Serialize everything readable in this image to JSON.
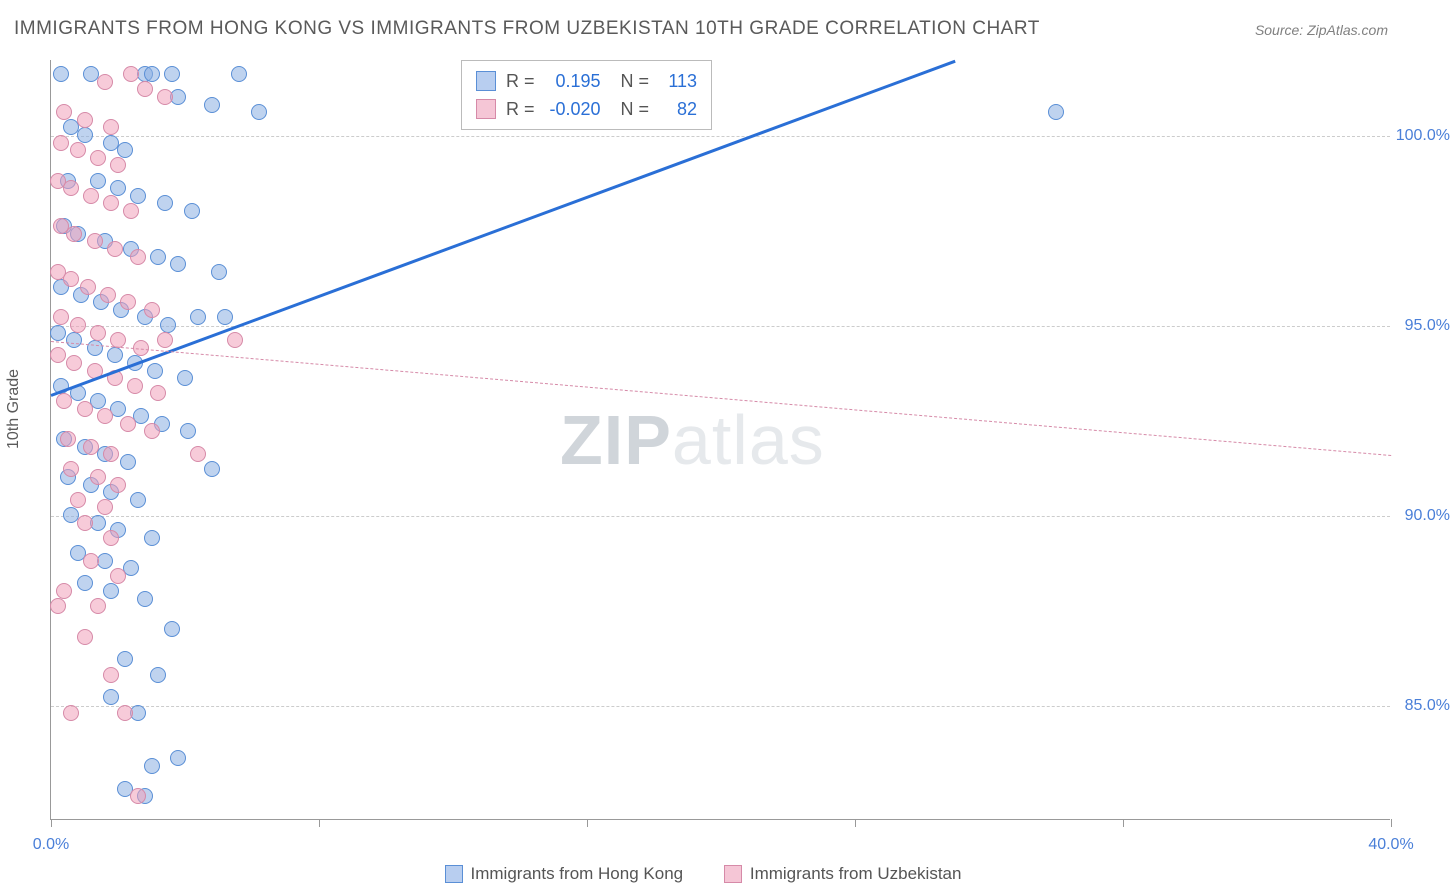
{
  "title": "IMMIGRANTS FROM HONG KONG VS IMMIGRANTS FROM UZBEKISTAN 10TH GRADE CORRELATION CHART",
  "source": "Source: ZipAtlas.com",
  "ylabel": "10th Grade",
  "watermark_zip": "ZIP",
  "watermark_atlas": "atlas",
  "chart": {
    "type": "scatter",
    "xlim": [
      0,
      40
    ],
    "ylim": [
      82,
      102
    ],
    "xtick_labels": [
      "0.0%",
      "40.0%"
    ],
    "xtick_positions": [
      0,
      40
    ],
    "xtick_minor": [
      0,
      8,
      16,
      24,
      32,
      40
    ],
    "ytick_labels": [
      "85.0%",
      "90.0%",
      "95.0%",
      "100.0%"
    ],
    "ytick_positions": [
      85,
      90,
      95,
      100
    ],
    "background_color": "#ffffff",
    "grid_color": "#cccccc",
    "axis_color": "#999999",
    "label_color": "#4a7fd8",
    "series": [
      {
        "name": "Immigrants from Hong Kong",
        "marker_fill": "rgba(139,174,225,0.55)",
        "marker_stroke": "#5a8fd6",
        "swatch_fill": "#b8cef0",
        "swatch_stroke": "#5a8fd6",
        "line_color": "#2a6fd6",
        "line_dash": "solid",
        "line_width": 3,
        "R": "0.195",
        "N": "113",
        "trend": {
          "x1": 0,
          "y1": 93.2,
          "x2": 27,
          "y2": 102
        },
        "points": [
          [
            0.3,
            101.6
          ],
          [
            1.2,
            101.6
          ],
          [
            2.8,
            101.6
          ],
          [
            3.0,
            101.6
          ],
          [
            3.6,
            101.6
          ],
          [
            5.6,
            101.6
          ],
          [
            3.8,
            101.0
          ],
          [
            4.8,
            100.8
          ],
          [
            6.2,
            100.6
          ],
          [
            30.0,
            100.6
          ],
          [
            0.6,
            100.2
          ],
          [
            1.0,
            100.0
          ],
          [
            1.8,
            99.8
          ],
          [
            2.2,
            99.6
          ],
          [
            0.5,
            98.8
          ],
          [
            1.4,
            98.8
          ],
          [
            2.0,
            98.6
          ],
          [
            2.6,
            98.4
          ],
          [
            3.4,
            98.2
          ],
          [
            4.2,
            98.0
          ],
          [
            0.4,
            97.6
          ],
          [
            0.8,
            97.4
          ],
          [
            1.6,
            97.2
          ],
          [
            2.4,
            97.0
          ],
          [
            3.2,
            96.8
          ],
          [
            3.8,
            96.6
          ],
          [
            5.0,
            96.4
          ],
          [
            0.3,
            96.0
          ],
          [
            0.9,
            95.8
          ],
          [
            1.5,
            95.6
          ],
          [
            2.1,
            95.4
          ],
          [
            2.8,
            95.2
          ],
          [
            3.5,
            95.0
          ],
          [
            4.4,
            95.2
          ],
          [
            5.2,
            95.2
          ],
          [
            0.2,
            94.8
          ],
          [
            0.7,
            94.6
          ],
          [
            1.3,
            94.4
          ],
          [
            1.9,
            94.2
          ],
          [
            2.5,
            94.0
          ],
          [
            3.1,
            93.8
          ],
          [
            4.0,
            93.6
          ],
          [
            0.3,
            93.4
          ],
          [
            0.8,
            93.2
          ],
          [
            1.4,
            93.0
          ],
          [
            2.0,
            92.8
          ],
          [
            2.7,
            92.6
          ],
          [
            3.3,
            92.4
          ],
          [
            4.1,
            92.2
          ],
          [
            0.4,
            92.0
          ],
          [
            1.0,
            91.8
          ],
          [
            1.6,
            91.6
          ],
          [
            2.3,
            91.4
          ],
          [
            4.8,
            91.2
          ],
          [
            0.5,
            91.0
          ],
          [
            1.2,
            90.8
          ],
          [
            1.8,
            90.6
          ],
          [
            2.6,
            90.4
          ],
          [
            0.6,
            90.0
          ],
          [
            1.4,
            89.8
          ],
          [
            2.0,
            89.6
          ],
          [
            3.0,
            89.4
          ],
          [
            0.8,
            89.0
          ],
          [
            1.6,
            88.8
          ],
          [
            2.4,
            88.6
          ],
          [
            1.0,
            88.2
          ],
          [
            1.8,
            88.0
          ],
          [
            2.8,
            87.8
          ],
          [
            3.6,
            87.0
          ],
          [
            2.2,
            86.2
          ],
          [
            3.2,
            85.8
          ],
          [
            1.8,
            85.2
          ],
          [
            2.6,
            84.8
          ],
          [
            3.0,
            83.4
          ],
          [
            3.8,
            83.6
          ],
          [
            2.2,
            82.8
          ],
          [
            2.8,
            82.6
          ]
        ]
      },
      {
        "name": "Immigrants from Uzbekistan",
        "marker_fill": "rgba(240,160,185,0.55)",
        "marker_stroke": "#d68aa8",
        "swatch_fill": "#f5c6d6",
        "swatch_stroke": "#d68aa8",
        "line_color": "#d68aa8",
        "line_dash": "dashed",
        "line_width": 1.5,
        "R": "-0.020",
        "N": "82",
        "trend": {
          "x1": 0,
          "y1": 94.6,
          "x2": 40,
          "y2": 91.6
        },
        "points": [
          [
            2.4,
            101.6
          ],
          [
            1.6,
            101.4
          ],
          [
            2.8,
            101.2
          ],
          [
            3.4,
            101.0
          ],
          [
            0.4,
            100.6
          ],
          [
            1.0,
            100.4
          ],
          [
            1.8,
            100.2
          ],
          [
            0.3,
            99.8
          ],
          [
            0.8,
            99.6
          ],
          [
            1.4,
            99.4
          ],
          [
            2.0,
            99.2
          ],
          [
            0.2,
            98.8
          ],
          [
            0.6,
            98.6
          ],
          [
            1.2,
            98.4
          ],
          [
            1.8,
            98.2
          ],
          [
            2.4,
            98.0
          ],
          [
            0.3,
            97.6
          ],
          [
            0.7,
            97.4
          ],
          [
            1.3,
            97.2
          ],
          [
            1.9,
            97.0
          ],
          [
            2.6,
            96.8
          ],
          [
            0.2,
            96.4
          ],
          [
            0.6,
            96.2
          ],
          [
            1.1,
            96.0
          ],
          [
            1.7,
            95.8
          ],
          [
            2.3,
            95.6
          ],
          [
            3.0,
            95.4
          ],
          [
            0.3,
            95.2
          ],
          [
            0.8,
            95.0
          ],
          [
            1.4,
            94.8
          ],
          [
            2.0,
            94.6
          ],
          [
            2.7,
            94.4
          ],
          [
            3.4,
            94.6
          ],
          [
            5.5,
            94.6
          ],
          [
            0.2,
            94.2
          ],
          [
            0.7,
            94.0
          ],
          [
            1.3,
            93.8
          ],
          [
            1.9,
            93.6
          ],
          [
            2.5,
            93.4
          ],
          [
            3.2,
            93.2
          ],
          [
            0.4,
            93.0
          ],
          [
            1.0,
            92.8
          ],
          [
            1.6,
            92.6
          ],
          [
            2.3,
            92.4
          ],
          [
            3.0,
            92.2
          ],
          [
            0.5,
            92.0
          ],
          [
            1.2,
            91.8
          ],
          [
            1.8,
            91.6
          ],
          [
            4.4,
            91.6
          ],
          [
            0.6,
            91.2
          ],
          [
            1.4,
            91.0
          ],
          [
            2.0,
            90.8
          ],
          [
            0.8,
            90.4
          ],
          [
            1.6,
            90.2
          ],
          [
            1.0,
            89.8
          ],
          [
            1.8,
            89.4
          ],
          [
            1.2,
            88.8
          ],
          [
            2.0,
            88.4
          ],
          [
            0.4,
            88.0
          ],
          [
            1.4,
            87.6
          ],
          [
            0.2,
            87.6
          ],
          [
            1.0,
            86.8
          ],
          [
            1.8,
            85.8
          ],
          [
            0.6,
            84.8
          ],
          [
            2.2,
            84.8
          ],
          [
            2.6,
            82.6
          ]
        ]
      }
    ]
  },
  "stats_labels": {
    "R": "R =",
    "N": "N ="
  },
  "legend": {
    "s1": "Immigrants from Hong Kong",
    "s2": "Immigrants from Uzbekistan"
  }
}
